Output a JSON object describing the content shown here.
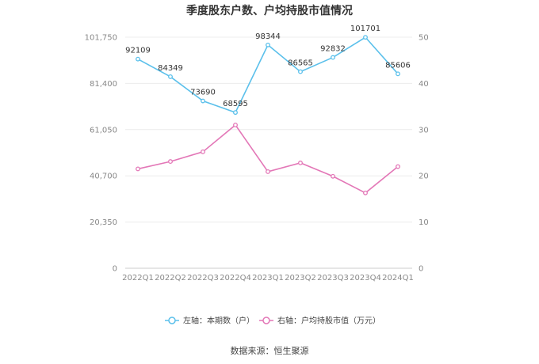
{
  "chart_data": {
    "type": "line",
    "title": "季度股东户数、户均持股市值情况",
    "categories": [
      "2022Q1",
      "2022Q2",
      "2022Q3",
      "2022Q4",
      "2023Q1",
      "2023Q2",
      "2023Q3",
      "2023Q4",
      "2024Q1"
    ],
    "series": [
      {
        "name": "左轴：本期数（户）",
        "axis": "left",
        "color": "#5bc0eb",
        "values": [
          92109,
          84349,
          73690,
          68595,
          98344,
          86565,
          92832,
          101701,
          85606
        ],
        "labels": [
          "92109",
          "84349",
          "73690",
          "68595",
          "98344",
          "86565",
          "92832",
          "101701",
          "85606"
        ]
      },
      {
        "name": "右轴：户均持股市值（万元）",
        "axis": "right",
        "color": "#e377b7",
        "values": [
          21.5,
          23.1,
          25.2,
          31.0,
          20.9,
          22.8,
          19.9,
          16.3,
          22.0
        ]
      }
    ],
    "left_axis": {
      "min": 0,
      "max": 101750,
      "ticks": [
        0,
        20350,
        40700,
        61050,
        81400,
        101750
      ],
      "tick_labels": [
        "0",
        "20,350",
        "40,700",
        "61,050",
        "81,400",
        "101,750"
      ]
    },
    "right_axis": {
      "min": 0,
      "max": 50,
      "ticks": [
        0,
        10,
        20,
        30,
        40,
        50
      ],
      "tick_labels": [
        "0",
        "10",
        "20",
        "30",
        "40",
        "50"
      ]
    }
  },
  "source": "数据来源：恒生聚源"
}
